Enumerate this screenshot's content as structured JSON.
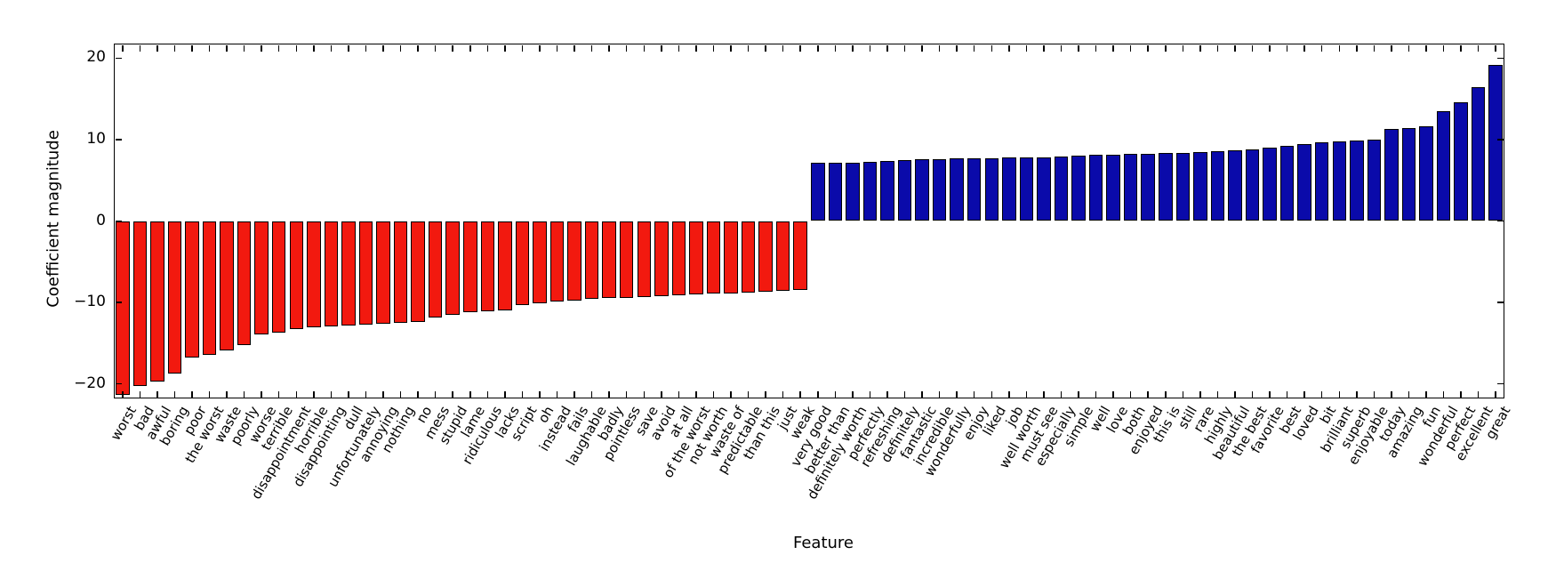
{
  "chart_data": {
    "type": "bar",
    "title": "",
    "xlabel": "Feature",
    "ylabel": "Coefficient magnitude",
    "ylim": [
      -21.8,
      21.8
    ],
    "grid": false,
    "legend": null,
    "colors": {
      "negative_bar": "#f2190f",
      "positive_bar": "#0a0aaa",
      "bar_edge": "#000000",
      "axis": "#000000",
      "background": "#ffffff"
    },
    "yticks": [
      {
        "label": "20",
        "value": 20
      },
      {
        "label": "10",
        "value": 10
      },
      {
        "label": "0",
        "value": 0
      },
      {
        "label": "−10",
        "value": -10
      },
      {
        "label": "−20",
        "value": -20
      }
    ],
    "categories": [
      "worst",
      "bad",
      "awful",
      "boring",
      "poor",
      "the worst",
      "waste",
      "poorly",
      "worse",
      "terrible",
      "disappointment",
      "horrible",
      "disappointing",
      "dull",
      "unfortunately",
      "annoying",
      "nothing",
      "no",
      "mess",
      "stupid",
      "lame",
      "ridiculous",
      "lacks",
      "script",
      "oh",
      "instead",
      "fails",
      "laughable",
      "badly",
      "pointless",
      "save",
      "avoid",
      "at all",
      "of the worst",
      "not worth",
      "waste of",
      "predictable",
      "than this",
      "just",
      "weak",
      "very good",
      "better than",
      "definitely worth",
      "perfectly",
      "refreshing",
      "definitely",
      "fantastic",
      "incredible",
      "wonderfully",
      "enjoy",
      "liked",
      "job",
      "well worth",
      "must see",
      "especially",
      "simple",
      "well",
      "love",
      "both",
      "enjoyed",
      "this is",
      "still",
      "rare",
      "highly",
      "beautiful",
      "the best",
      "favorite",
      "best",
      "loved",
      "bit",
      "brilliant",
      "superb",
      "enjoyable",
      "today",
      "amazing",
      "fun",
      "wonderful",
      "perfect",
      "excellent",
      "great"
    ],
    "values": [
      -21.4,
      -20.3,
      -19.7,
      -18.7,
      -16.8,
      -16.4,
      -15.9,
      -15.2,
      -13.9,
      -13.7,
      -13.3,
      -13.1,
      -12.9,
      -12.8,
      -12.7,
      -12.6,
      -12.5,
      -12.4,
      -11.9,
      -11.5,
      -11.2,
      -11.1,
      -11.0,
      -10.3,
      -10.1,
      -9.9,
      -9.8,
      -9.6,
      -9.5,
      -9.4,
      -9.3,
      -9.2,
      -9.1,
      -9.0,
      -8.9,
      -8.9,
      -8.8,
      -8.7,
      -8.6,
      -8.5,
      7.2,
      7.2,
      7.2,
      7.3,
      7.4,
      7.5,
      7.6,
      7.6,
      7.7,
      7.7,
      7.7,
      7.8,
      7.8,
      7.8,
      7.9,
      8.0,
      8.1,
      8.1,
      8.2,
      8.3,
      8.4,
      8.4,
      8.5,
      8.6,
      8.7,
      8.8,
      9.0,
      9.2,
      9.4,
      9.7,
      9.8,
      9.9,
      10.0,
      11.3,
      11.4,
      11.6,
      13.5,
      14.6,
      16.5,
      19.2
    ]
  }
}
